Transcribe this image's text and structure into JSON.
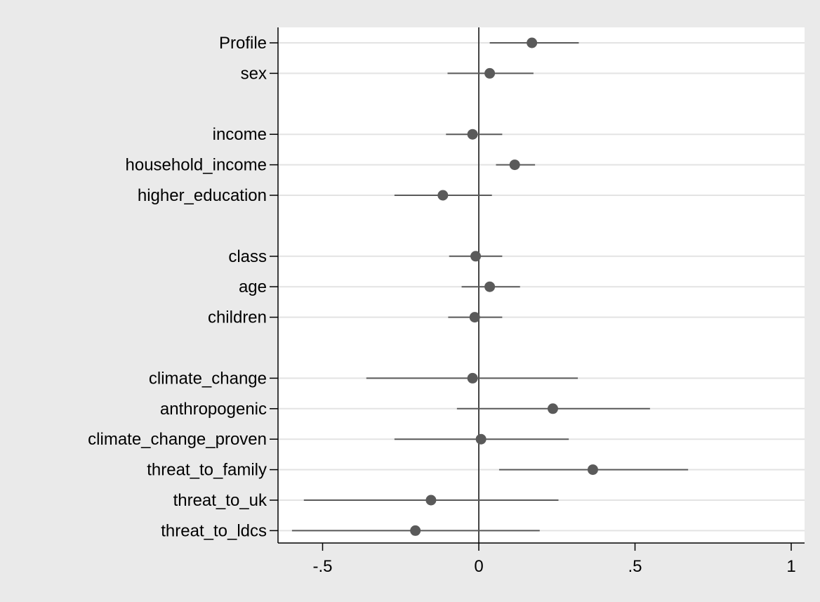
{
  "chart_data": {
    "type": "coefplot",
    "title": "",
    "xlabel": "",
    "ylabel": "",
    "xlim": [
      -0.64,
      1.02
    ],
    "xticks": [
      {
        "value": -0.5,
        "label": "-.5"
      },
      {
        "value": 0,
        "label": "0"
      },
      {
        "value": 0.5,
        "label": ".5"
      },
      {
        "value": 1,
        "label": "1"
      }
    ],
    "reference_line_x": 0,
    "grid": true,
    "points": [
      {
        "label": "Profile",
        "row": 0,
        "estimate": 0.17,
        "ci_low": 0.035,
        "ci_high": 0.32
      },
      {
        "label": "sex",
        "row": 1,
        "estimate": 0.035,
        "ci_low": -0.1,
        "ci_high": 0.175
      },
      {
        "label": "income",
        "row": 3,
        "estimate": -0.02,
        "ci_low": -0.105,
        "ci_high": 0.075
      },
      {
        "label": "household_income",
        "row": 4,
        "estimate": 0.115,
        "ci_low": 0.055,
        "ci_high": 0.18
      },
      {
        "label": "higher_education",
        "row": 5,
        "estimate": -0.115,
        "ci_low": -0.27,
        "ci_high": 0.042
      },
      {
        "label": "class",
        "row": 7,
        "estimate": -0.01,
        "ci_low": -0.095,
        "ci_high": 0.075
      },
      {
        "label": "age",
        "row": 8,
        "estimate": 0.035,
        "ci_low": -0.055,
        "ci_high": 0.132
      },
      {
        "label": "children",
        "row": 9,
        "estimate": -0.013,
        "ci_low": -0.098,
        "ci_high": 0.075
      },
      {
        "label": "climate_change",
        "row": 11,
        "estimate": -0.02,
        "ci_low": -0.36,
        "ci_high": 0.317
      },
      {
        "label": "anthropogenic",
        "row": 12,
        "estimate": 0.237,
        "ci_low": -0.07,
        "ci_high": 0.548
      },
      {
        "label": "climate_change_proven",
        "row": 13,
        "estimate": 0.007,
        "ci_low": -0.27,
        "ci_high": 0.288
      },
      {
        "label": "threat_to_family",
        "row": 14,
        "estimate": 0.365,
        "ci_low": 0.065,
        "ci_high": 0.67
      },
      {
        "label": "threat_to_uk",
        "row": 15,
        "estimate": -0.153,
        "ci_low": -0.56,
        "ci_high": 0.255
      },
      {
        "label": "threat_to_ldcs",
        "row": 16,
        "estimate": -0.203,
        "ci_low": -0.598,
        "ci_high": 0.195
      }
    ],
    "colors": {
      "background": "#eaeaea",
      "plot_region": "#ffffff",
      "marker": "#5a5a5a",
      "ci_line": "#5a5a5a",
      "grid": "#e3e3e3",
      "axis": "#000000",
      "reference_line": "#444444"
    }
  }
}
